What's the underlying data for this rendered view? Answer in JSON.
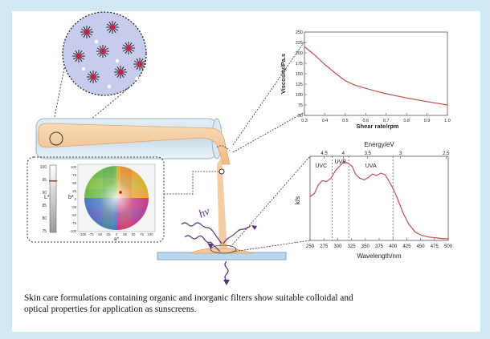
{
  "caption": {
    "line1": "Skin care formulations containing organic and inorganic filters show suitable colloidal and",
    "line2": "optical properties for application as sunscreens."
  },
  "light_label": "hν",
  "colors": {
    "background": "#cfe8f3",
    "panel": "#ffffff",
    "cream": "#f3c89a",
    "curve": "#c0504d",
    "particle_disc": "#c8ccec"
  },
  "lab_scale": {
    "l_label": "L*",
    "b_label": "b*",
    "a_label": "a*",
    "l_ticks": [
      "100",
      "95",
      "90",
      "85",
      "80",
      "75"
    ],
    "b_ticks": [
      "100",
      "75",
      "50",
      "25",
      "0",
      "-25",
      "-50",
      "-75",
      "-100"
    ],
    "a_ticks": [
      "-100",
      "-75",
      "-50",
      "-25",
      "0",
      "25",
      "50",
      "75",
      "100"
    ]
  },
  "chart_data": [
    {
      "type": "line",
      "xlabel": "Shear rate/rpm",
      "ylabel": "Viscosity/Pa.s",
      "xlim": [
        0.3,
        1.0
      ],
      "ylim": [
        50,
        250
      ],
      "x_ticks": [
        "0.3",
        "0.4",
        "0.5",
        "0.6",
        "0.7",
        "0.8",
        "0.9",
        "1.0"
      ],
      "y_ticks": [
        "50",
        "75",
        "100",
        "125",
        "150",
        "175",
        "200",
        "225",
        "250"
      ],
      "x": [
        0.3,
        0.35,
        0.4,
        0.45,
        0.5,
        0.55,
        0.6,
        0.65,
        0.7,
        0.8,
        0.9,
        1.0
      ],
      "y": [
        215,
        195,
        172,
        152,
        133,
        122,
        115,
        108,
        102,
        92,
        83,
        75
      ]
    },
    {
      "type": "line",
      "xlabel": "Wavelength/nm",
      "ylabel": "k/s",
      "top_axis_label": "Energy/eV",
      "top_ticks": [
        "4.5",
        "4",
        "3.5",
        "3",
        "2.5"
      ],
      "xlim": [
        250,
        500
      ],
      "x_ticks": [
        "250",
        "275",
        "300",
        "325",
        "350",
        "375",
        "400",
        "425",
        "450",
        "475",
        "500"
      ],
      "regions": [
        "UVC",
        "UVB",
        "UVA"
      ],
      "boundaries": [
        290,
        320,
        400
      ],
      "x": [
        250,
        258,
        265,
        272,
        280,
        288,
        296,
        303,
        310,
        318,
        326,
        333,
        340,
        348,
        356,
        363,
        370,
        378,
        386,
        393,
        400,
        408,
        418,
        428,
        440,
        452,
        465,
        480,
        490,
        500
      ],
      "y": [
        0.52,
        0.56,
        0.66,
        0.71,
        0.7,
        0.74,
        0.83,
        0.88,
        0.93,
        0.92,
        0.88,
        0.78,
        0.74,
        0.72,
        0.75,
        0.79,
        0.77,
        0.8,
        0.78,
        0.7,
        0.62,
        0.5,
        0.33,
        0.2,
        0.1,
        0.06,
        0.04,
        0.03,
        0.02,
        0.02
      ]
    }
  ]
}
